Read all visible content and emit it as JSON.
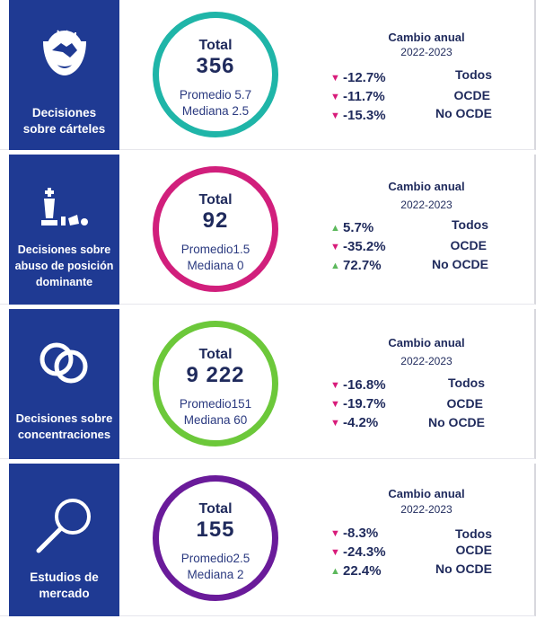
{
  "rows": [
    {
      "label_lines": [
        "Decisiones",
        "sobre cárteles"
      ],
      "icon": "handshake-icon",
      "ring_color": "#1fb5a8",
      "total_label": "Total",
      "total": "356",
      "promedio_label": "Promedio",
      "promedio": "5.7",
      "mediana_label": "Mediana",
      "mediana": "2.5",
      "change_title": "Cambio anual",
      "change_period": "2022-2023",
      "changes": [
        {
          "dir": "down",
          "value": "-12.7%",
          "group": "Todos"
        },
        {
          "dir": "down",
          "value": "-11.7%",
          "group": "OCDE"
        },
        {
          "dir": "down",
          "value": "-15.3%",
          "group": "No OCDE"
        }
      ]
    },
    {
      "label_lines": [
        "Decisiones sobre",
        "abuso de posición",
        "dominante"
      ],
      "icon": "chess-king-icon",
      "ring_color": "#d11f7c",
      "total_label": "Total",
      "total": "92",
      "promedio_label": "Promedio",
      "promedio": "1.5",
      "mediana_label": "Mediana",
      "mediana": "0",
      "change_title": "Cambio anual",
      "change_period": "2022-2023",
      "changes": [
        {
          "dir": "up",
          "value": "5.7%",
          "group": "Todos"
        },
        {
          "dir": "down",
          "value": "-35.2%",
          "group": "OCDE"
        },
        {
          "dir": "up",
          "value": "72.7%",
          "group": "No OCDE"
        }
      ]
    },
    {
      "label_lines": [
        "Decisiones sobre",
        "concentraciones"
      ],
      "icon": "interlocking-rings-icon",
      "ring_color": "#6cc83a",
      "total_label": "Total",
      "total": "9 222",
      "promedio_label": "Promedio",
      "promedio": "151",
      "mediana_label": "Mediana",
      "mediana": "60",
      "change_title": "Cambio anual",
      "change_period": "2022-2023",
      "changes": [
        {
          "dir": "down",
          "value": "-16.8%",
          "group": "Todos"
        },
        {
          "dir": "down",
          "value": "-19.7%",
          "group": "OCDE"
        },
        {
          "dir": "down",
          "value": "-4.2%",
          "group": "No OCDE"
        }
      ]
    },
    {
      "label_lines": [
        "Estudios de",
        "mercado"
      ],
      "icon": "magnifier-icon",
      "ring_color": "#6a1b9a",
      "total_label": "Total",
      "total": "155",
      "promedio_label": "Promedio",
      "promedio": "2.5",
      "mediana_label": "Mediana",
      "mediana": "2",
      "change_title": "Cambio anual",
      "change_period": "2022-2023",
      "changes": [
        {
          "dir": "down",
          "value": "-8.3%",
          "group": "Todos"
        },
        {
          "dir": "down",
          "value": "-24.3%",
          "group": "OCDE"
        },
        {
          "dir": "up",
          "value": "22.4%",
          "group": "No OCDE"
        }
      ]
    }
  ]
}
